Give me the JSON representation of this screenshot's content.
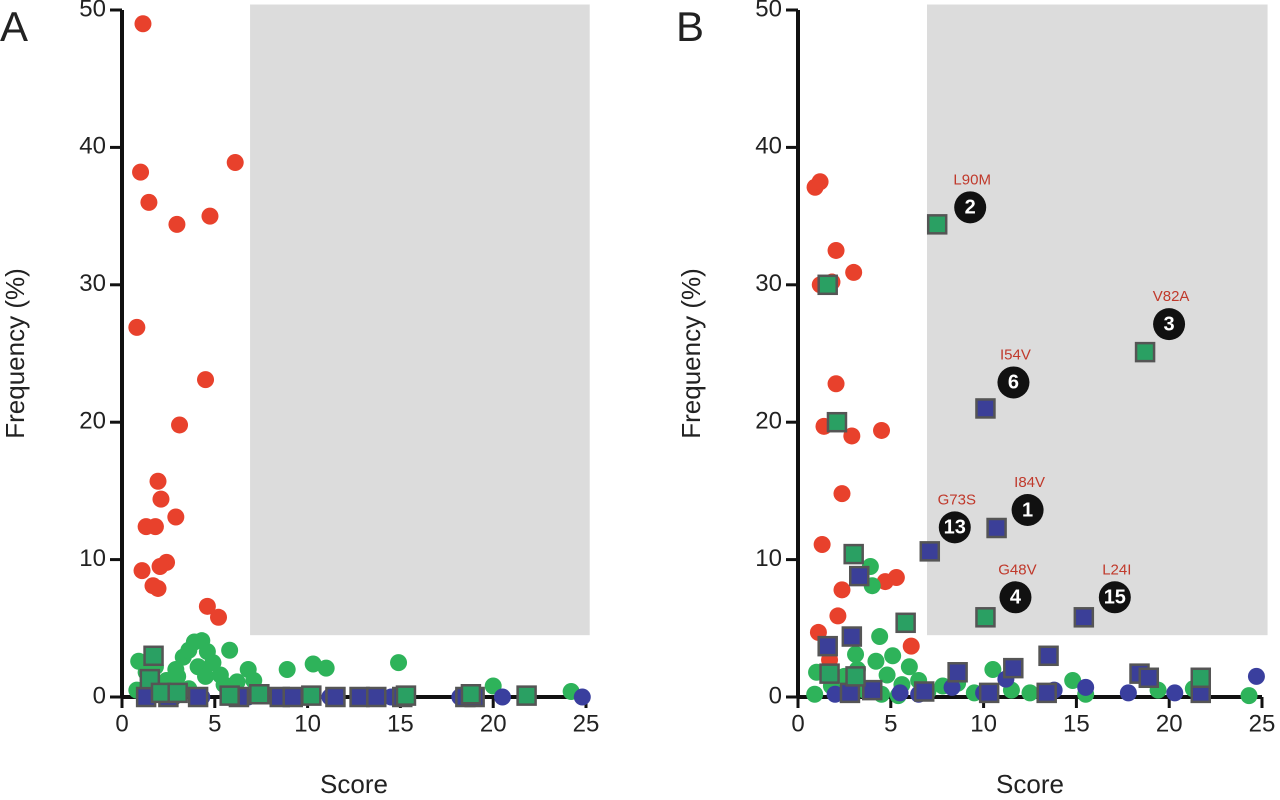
{
  "chart_data": [
    {
      "type": "scatter",
      "panel_label": "A",
      "xlabel": "Score",
      "ylabel": "Frequency (%)",
      "xlim": [
        0,
        25
      ],
      "ylim": [
        0,
        50
      ],
      "xticks": [
        0,
        5,
        10,
        15,
        20,
        25
      ],
      "yticks": [
        0,
        10,
        20,
        30,
        40,
        50
      ],
      "shaded_region": {
        "xlim": [
          6.9,
          25.2
        ],
        "ylim": [
          4.5,
          50.4
        ],
        "color": "#dcdcdc"
      },
      "series": [
        {
          "color": "#e8412c",
          "marker": "circle",
          "x": [
            1.13,
            1.0,
            1.45,
            2.96,
            6.1,
            4.74,
            0.8,
            4.5,
            3.1,
            1.94,
            2.1,
            2.9,
            1.3,
            1.8,
            2.4,
            2.05,
            1.08,
            1.67,
            1.94,
            4.6,
            5.2
          ],
          "y": [
            49.0,
            38.2,
            36.0,
            34.4,
            38.9,
            35.0,
            26.9,
            23.1,
            19.8,
            15.7,
            14.4,
            13.1,
            12.4,
            12.4,
            9.8,
            9.5,
            9.2,
            8.1,
            7.9,
            6.6,
            5.8
          ]
        },
        {
          "color": "#2eb35a",
          "marker": "circle",
          "x": [
            0.9,
            1.3,
            1.8,
            2.4,
            2.9,
            3.3,
            3.6,
            3.9,
            4.3,
            4.6,
            4.9,
            5.3,
            5.8,
            6.2,
            6.8,
            7.1,
            0.8,
            1.6,
            2.6,
            3.6,
            4.1,
            4.5,
            8.9,
            10.3,
            11.0,
            14.9,
            20.0,
            24.2,
            5.5,
            3.0
          ],
          "y": [
            2.6,
            1.8,
            2.2,
            1.2,
            2.0,
            2.9,
            3.4,
            4.0,
            4.1,
            3.3,
            2.5,
            1.6,
            3.4,
            1.1,
            2.0,
            1.2,
            0.5,
            0.3,
            0.8,
            0.6,
            2.2,
            1.5,
            2.0,
            2.4,
            2.1,
            2.5,
            0.8,
            0.4,
            0.9,
            1.5
          ]
        },
        {
          "color": "#3a3f9e",
          "marker": "circle",
          "x": [
            1.5,
            2.8,
            4.3,
            6.8,
            8.5,
            9.5,
            11.2,
            13.0,
            14.5,
            18.2,
            20.5,
            24.8
          ],
          "y": [
            0,
            0,
            0,
            0,
            0,
            0,
            0,
            0,
            0,
            0,
            0,
            0
          ]
        },
        {
          "color": "#3b3f98",
          "marker": "square",
          "x": [
            1.3,
            2.5,
            4.1,
            6.3,
            8.5,
            9.2,
            11.5,
            12.8,
            13.7,
            15.1,
            18.5,
            19.0
          ],
          "y": [
            0,
            0,
            0,
            0,
            0,
            0,
            0,
            0,
            0,
            0,
            0,
            0
          ]
        },
        {
          "color": "#2aa063",
          "marker": "square",
          "x": [
            1.7,
            1.5,
            2.1,
            3.0,
            5.8,
            7.4,
            10.2,
            15.3,
            18.8,
            21.8
          ],
          "y": [
            3.0,
            1.3,
            0.3,
            0.3,
            0.1,
            0.2,
            0.1,
            0.1,
            0.2,
            0.1
          ]
        }
      ]
    },
    {
      "type": "scatter",
      "panel_label": "B",
      "xlabel": "Score",
      "ylabel": "Frequency (%)",
      "xlim": [
        0,
        25
      ],
      "ylim": [
        0,
        50
      ],
      "xticks": [
        0,
        5,
        10,
        15,
        20,
        25
      ],
      "yticks": [
        0,
        10,
        20,
        30,
        40,
        50
      ],
      "shaded_region": {
        "xlim": [
          6.95,
          25.3
        ],
        "ylim": [
          4.5,
          50.4
        ],
        "color": "#dcdcdc"
      },
      "series": [
        {
          "color": "#e8412c",
          "marker": "circle",
          "x": [
            0.92,
            1.19,
            2.05,
            1.2,
            1.83,
            3.0,
            2.05,
            1.4,
            2.9,
            4.5,
            2.37,
            1.3,
            2.37,
            4.7,
            5.3,
            2.15,
            1.1,
            6.1,
            1.7
          ],
          "y": [
            37.1,
            37.5,
            32.5,
            30.0,
            30.2,
            30.9,
            22.8,
            19.7,
            19.0,
            19.4,
            14.8,
            11.1,
            7.8,
            8.4,
            8.7,
            5.9,
            4.7,
            3.7,
            2.7
          ]
        },
        {
          "color": "#2eb35a",
          "marker": "circle",
          "x": [
            3.9,
            4.0,
            4.4,
            1.0,
            1.8,
            2.5,
            3.2,
            3.6,
            4.2,
            4.8,
            5.1,
            5.6,
            6.0,
            6.5,
            7.0,
            7.8,
            8.6,
            9.5,
            10.5,
            11.5,
            12.5,
            14.8,
            15.5,
            19.4,
            21.3,
            24.3,
            0.9,
            2.2,
            4.5,
            3.1,
            5.4
          ],
          "y": [
            9.5,
            8.1,
            4.4,
            1.8,
            0.8,
            1.5,
            2.0,
            0.5,
            2.6,
            1.6,
            3.0,
            0.9,
            2.2,
            1.2,
            0.4,
            0.8,
            1.0,
            0.3,
            2.0,
            0.5,
            0.3,
            1.2,
            0.2,
            0.5,
            0.6,
            0.1,
            0.2,
            0.3,
            0.2,
            3.1,
            0.1
          ]
        },
        {
          "color": "#3a3f9e",
          "marker": "circle",
          "x": [
            2.0,
            5.5,
            8.3,
            11.2,
            13.8,
            15.5,
            17.8,
            20.3,
            24.7,
            6.5,
            10.0
          ],
          "y": [
            0.2,
            0.3,
            0.7,
            1.3,
            0.5,
            0.7,
            0.3,
            0.3,
            1.5,
            0.2,
            0.3
          ]
        },
        {
          "color": "#3b3f98",
          "marker": "square",
          "x": [
            10.1,
            7.1,
            10.7,
            15.4,
            3.3,
            1.6,
            2.9,
            8.6,
            11.6,
            13.5,
            18.4,
            18.9,
            4.0,
            6.8,
            10.3,
            13.4,
            21.7,
            2.8
          ],
          "y": [
            21.0,
            10.6,
            12.3,
            5.8,
            8.8,
            3.7,
            4.4,
            1.8,
            2.1,
            3.0,
            1.7,
            1.4,
            0.5,
            0.4,
            0.3,
            0.3,
            0.3,
            0.3
          ]
        },
        {
          "color": "#2aa063",
          "marker": "square",
          "x": [
            1.6,
            2.1,
            3.0,
            5.8,
            7.5,
            10.1,
            18.7,
            1.7,
            3.1,
            21.7
          ],
          "y": [
            30.0,
            20.0,
            10.4,
            5.4,
            34.4,
            5.8,
            25.1,
            1.7,
            1.5,
            1.4
          ]
        }
      ],
      "annotations": [
        {
          "label": "L90M",
          "number": 2,
          "x": 7.5,
          "y": 34.4
        },
        {
          "label": "V82A",
          "number": 3,
          "x": 18.7,
          "y": 25.1
        },
        {
          "label": "I54V",
          "number": 6,
          "x": 10.1,
          "y": 21.0
        },
        {
          "label": "I84V",
          "number": 1,
          "x": 10.7,
          "y": 12.3
        },
        {
          "label": "G73S",
          "number": 13,
          "x": 7.1,
          "y": 10.6
        },
        {
          "label": "G48V",
          "number": 4,
          "x": 10.1,
          "y": 5.8
        },
        {
          "label": "L24I",
          "number": 15,
          "x": 15.4,
          "y": 5.8
        }
      ]
    }
  ]
}
